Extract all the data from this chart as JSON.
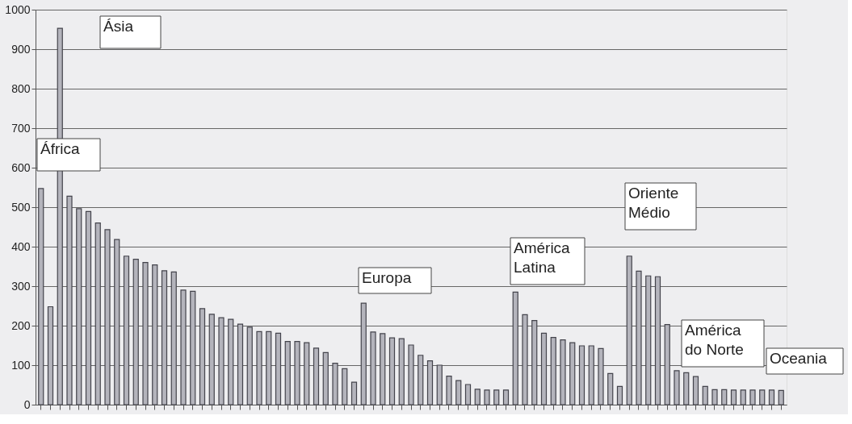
{
  "chart_data": {
    "type": "bar",
    "categories": [
      null,
      null,
      null,
      null,
      null,
      null,
      null,
      null,
      null,
      null,
      null,
      null,
      null,
      null,
      null,
      null,
      null,
      null,
      null,
      null,
      null,
      null,
      null,
      null,
      null,
      null,
      null,
      null,
      null,
      null,
      null,
      null,
      null,
      null,
      null,
      null,
      null,
      null,
      null,
      null,
      null,
      null,
      null,
      null,
      null,
      null,
      null,
      null,
      null,
      null,
      null,
      null,
      null,
      null,
      null,
      null,
      null,
      null,
      null,
      null,
      null,
      null,
      null,
      null,
      null,
      null,
      null,
      null,
      null,
      null,
      null,
      null,
      null,
      null,
      null,
      null,
      null,
      null,
      null
    ],
    "values": [
      547,
      248,
      953,
      528,
      496,
      489,
      460,
      443,
      418,
      376,
      368,
      360,
      354,
      339,
      336,
      290,
      287,
      243,
      229,
      220,
      216,
      204,
      196,
      185,
      185,
      181,
      160,
      160,
      157,
      143,
      132,
      105,
      91,
      57,
      257,
      184,
      180,
      169,
      167,
      151,
      125,
      111,
      100,
      72,
      61,
      51,
      39,
      37,
      37,
      37,
      285,
      228,
      213,
      181,
      170,
      164,
      157,
      149,
      149,
      142,
      79,
      46,
      376,
      338,
      326,
      324,
      203,
      86,
      81,
      71,
      46,
      38,
      38,
      37,
      37,
      37,
      37,
      37,
      36
    ],
    "color": "#b4b4bc",
    "ylim": [
      0,
      1000
    ],
    "yticks": [
      0,
      100,
      200,
      300,
      400,
      500,
      600,
      700,
      800,
      900,
      1000
    ],
    "grid": "y",
    "tick_labels": "y",
    "annotations": [
      "Ásia",
      "África",
      "Europa",
      "América\nLatina",
      "Oriente\nMédio",
      "América\ndo Norte",
      "Oceania"
    ]
  }
}
